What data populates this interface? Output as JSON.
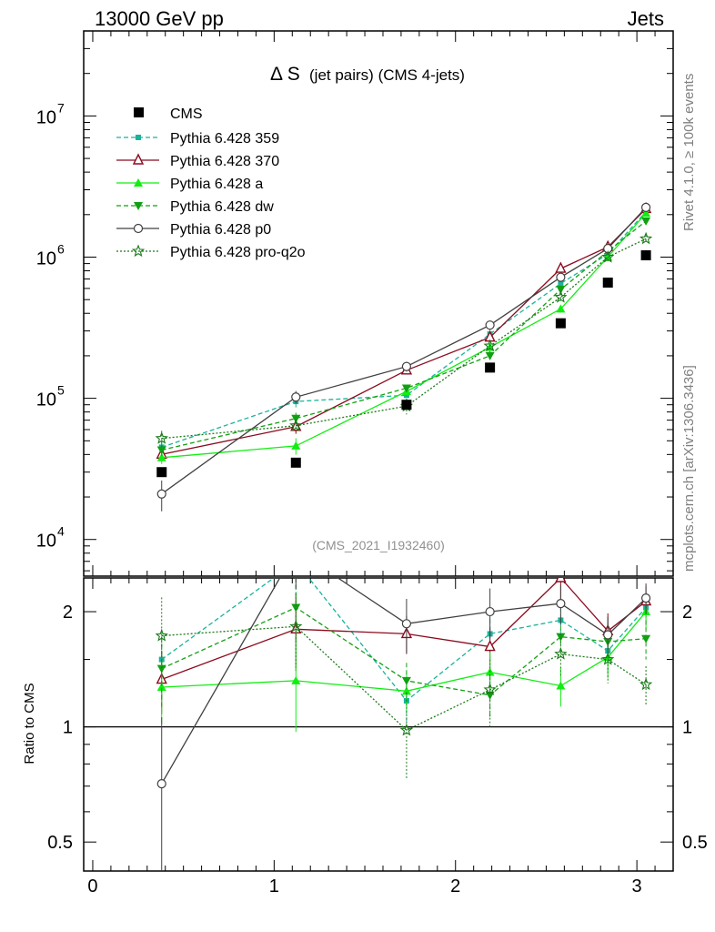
{
  "header": {
    "energy_label": "13000 GeV pp",
    "process_label": "Jets"
  },
  "side_labels": {
    "rivet": "Rivet 4.1.0, ≥ 100k events",
    "mcplots": "mcplots.cern.ch [arXiv:1306.3436]"
  },
  "chart_data": {
    "type": "line",
    "title_main": "Δ S",
    "title_sub": "(jet pairs) (CMS 4-jets)",
    "analysis_label": "(CMS_2021_I1932460)",
    "xlabel": "",
    "ylabel_ratio": "Ratio to CMS",
    "xlim": [
      -0.05,
      3.2
    ],
    "xticks": [
      0,
      1,
      2,
      3
    ],
    "xtick_labels": [
      "0",
      "1",
      "2",
      "3"
    ],
    "main_ylim": [
      5500,
      40000000
    ],
    "main_yscale": "log",
    "main_yticks": [
      {
        "value": 10000,
        "base": "10",
        "exp": "4"
      },
      {
        "value": 100000,
        "base": "10",
        "exp": "5"
      },
      {
        "value": 1000000,
        "base": "10",
        "exp": "6"
      },
      {
        "value": 10000000,
        "base": "10",
        "exp": "7"
      }
    ],
    "ratio_ylim": [
      0.42,
      2.45
    ],
    "ratio_yscale": "log",
    "ratio_yticks": [
      {
        "value": 0.5,
        "label": "0.5"
      },
      {
        "value": 1,
        "label": "1"
      },
      {
        "value": 2,
        "label": "2"
      }
    ],
    "x": [
      0.38,
      1.12,
      1.73,
      2.19,
      2.58,
      2.84,
      3.05
    ],
    "data": {
      "name": "CMS",
      "color": "#000000",
      "values": [
        30000,
        35000,
        90000,
        165000,
        340000,
        660000,
        1030000
      ]
    },
    "series": [
      {
        "name": "Pythia 6.428 359",
        "color": "#19b39a",
        "dash": "5,3",
        "marker": "square-small",
        "values": [
          45000,
          95000,
          105000,
          285000,
          650000,
          1050000,
          2100000
        ],
        "ratio": [
          1.5,
          2.7,
          1.17,
          1.75,
          1.9,
          1.58,
          2.05
        ],
        "ratio_err": [
          0.3,
          0.5,
          0.15,
          0.25,
          0.25,
          0.2,
          0.2
        ]
      },
      {
        "name": "Pythia 6.428 370",
        "color": "#8b0a1e",
        "dash": "",
        "marker": "triangle-open",
        "values": [
          40000,
          63000,
          158000,
          270000,
          830000,
          1180000,
          2200000
        ],
        "ratio": [
          1.33,
          1.8,
          1.75,
          1.62,
          2.45,
          1.78,
          2.13
        ],
        "ratio_err": [
          0.25,
          0.4,
          0.2,
          0.2,
          0.3,
          0.2,
          0.2
        ]
      },
      {
        "name": "Pythia 6.428 a",
        "color": "#11ee11",
        "dash": "",
        "marker": "triangle-filled",
        "values": [
          38000,
          46000,
          112000,
          230000,
          430000,
          1000000,
          2050000
        ],
        "ratio": [
          1.27,
          1.32,
          1.24,
          1.39,
          1.28,
          1.52,
          2.0
        ],
        "ratio_err": [
          0.25,
          0.35,
          0.15,
          0.18,
          0.15,
          0.18,
          0.2
        ]
      },
      {
        "name": "Pythia 6.428 dw",
        "color": "#11a011",
        "dash": "5,3",
        "marker": "triangle-down",
        "values": [
          43000,
          72000,
          118000,
          200000,
          590000,
          1100000,
          1800000
        ],
        "ratio": [
          1.42,
          2.05,
          1.32,
          1.21,
          1.72,
          1.67,
          1.7
        ],
        "ratio_err": [
          0.3,
          0.4,
          0.15,
          0.15,
          0.2,
          0.2,
          0.2
        ]
      },
      {
        "name": "Pythia 6.428 p0",
        "color": "#404040",
        "dash": "",
        "marker": "circle-open",
        "values": [
          21000,
          102000,
          168000,
          330000,
          720000,
          1150000,
          2250000
        ],
        "ratio": [
          0.71,
          2.9,
          1.86,
          2.0,
          2.1,
          1.74,
          2.17
        ],
        "ratio_err": [
          0.35,
          0.6,
          0.3,
          0.3,
          0.25,
          0.2,
          0.2
        ]
      },
      {
        "name": "Pythia 6.428 pro-q2o",
        "color": "#1a7a1a",
        "dash": "2,2",
        "marker": "star",
        "values": [
          52000,
          64000,
          88000,
          235000,
          520000,
          1000000,
          1350000
        ],
        "ratio": [
          1.73,
          1.83,
          0.98,
          1.25,
          1.55,
          1.5,
          1.29
        ],
        "ratio_err": [
          0.45,
          0.4,
          0.25,
          0.25,
          0.2,
          0.2,
          0.15
        ]
      }
    ]
  }
}
